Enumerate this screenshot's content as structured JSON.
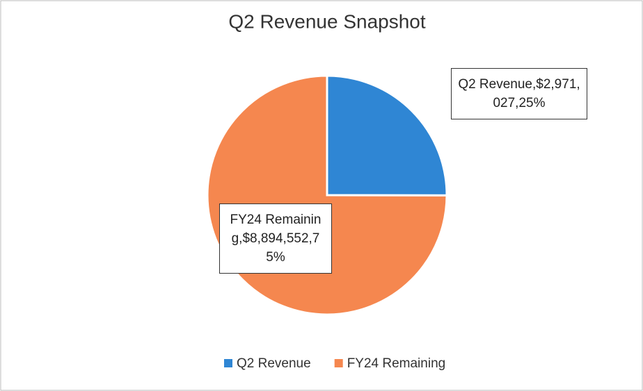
{
  "chart_data": {
    "type": "pie",
    "title": "Q2 Revenue Snapshot",
    "categories": [
      "Q2 Revenue",
      "FY24 Remaining"
    ],
    "values": [
      2971027,
      8894552
    ],
    "value_labels": [
      "Q2 Revenue,$2,971,027,25%",
      "FY24 Remaining,$8,894,552,75%"
    ],
    "colors": [
      "#2f86d4",
      "#f5874f"
    ],
    "legend": "bottom"
  }
}
